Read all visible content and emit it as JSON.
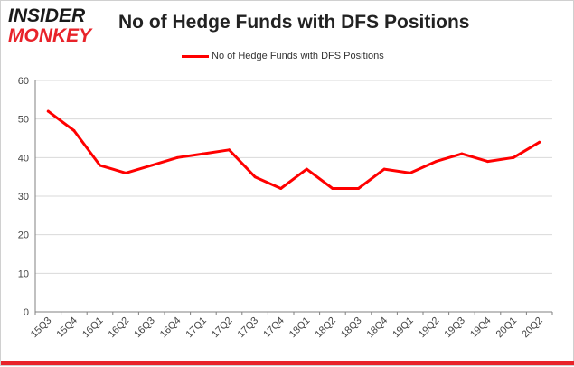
{
  "header": {
    "logo_top": "INSIDER",
    "logo_bottom": "MONKEY",
    "title": "No of Hedge Funds with DFS Positions"
  },
  "colors": {
    "series": "#ff0000",
    "logo_red": "#e8232a",
    "grid": "#d9d9d9",
    "axis": "#808080"
  },
  "chart_data": {
    "type": "line",
    "title": "No of Hedge Funds with DFS Positions",
    "xlabel": "",
    "ylabel": "",
    "ylim": [
      0,
      60
    ],
    "yticks": [
      0,
      10,
      20,
      30,
      40,
      50,
      60
    ],
    "grid": "horizontal",
    "legend_position": "top-center",
    "categories": [
      "15Q3",
      "15Q4",
      "16Q1",
      "16Q2",
      "16Q3",
      "16Q4",
      "17Q1",
      "17Q2",
      "17Q3",
      "17Q4",
      "18Q1",
      "18Q2",
      "18Q3",
      "18Q4",
      "19Q1",
      "19Q2",
      "19Q3",
      "19Q4",
      "20Q1",
      "20Q2"
    ],
    "series": [
      {
        "name": "No of Hedge Funds with DFS Positions",
        "values": [
          52,
          47,
          38,
          36,
          38,
          40,
          41,
          42,
          35,
          32,
          37,
          32,
          32,
          37,
          36,
          39,
          41,
          39,
          40,
          44
        ]
      }
    ]
  }
}
